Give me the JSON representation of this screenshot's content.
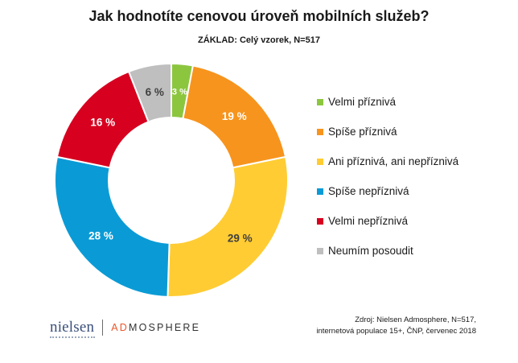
{
  "chart_data": {
    "type": "pie",
    "title": "Jak hodnotíte cenovou úroveň mobilních služeb?",
    "subtitle": "ZÁKLAD: Celý vzorek, N=517",
    "donut": true,
    "categories": [
      "Velmi příznivá",
      "Spíše příznivá",
      "Ani příznivá, ani nepříznivá",
      "Spíše nepříznivá",
      "Velmi nepříznivá",
      "Neumím posoudit"
    ],
    "values": [
      3,
      19,
      29,
      28,
      16,
      6
    ],
    "data_labels": [
      "3 %",
      "19 %",
      "29 %",
      "28 %",
      "16 %",
      "6 %"
    ],
    "colors": [
      "#8cc63f",
      "#f7941d",
      "#ffcc33",
      "#0a9bd6",
      "#d7001f",
      "#bfbfbf"
    ],
    "label_colors": [
      "#ffffff",
      "#ffffff",
      "#404040",
      "#ffffff",
      "#ffffff",
      "#404040"
    ],
    "legend_position": "right"
  },
  "source": {
    "line1": "Zdroj: Nielsen Admosphere, N=517,",
    "line2": "internetová populace 15+, ČNP, červenec 2018"
  },
  "logos": {
    "nielsen": "nielsen",
    "separator": "|",
    "admosphere_ad": "AD",
    "admosphere_rest": "MOSPHERE"
  }
}
